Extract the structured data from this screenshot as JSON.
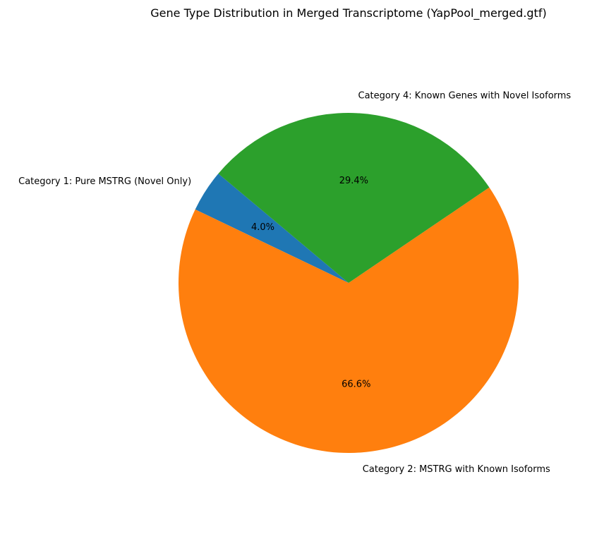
{
  "chart_data": {
    "type": "pie",
    "title": "Gene Type Distribution in Merged Transcriptome (YapPool_merged.gtf)",
    "start_angle_deg": 140,
    "direction": "counterclockwise",
    "slices": [
      {
        "label": "Category 1: Pure MSTRG (Novel Only)",
        "value": 4.0,
        "pct_label": "4.0%",
        "color": "#1f77b4"
      },
      {
        "label": "Category 2: MSTRG with Known Isoforms",
        "value": 66.6,
        "pct_label": "66.6%",
        "color": "#ff7f0e"
      },
      {
        "label": "Category 4: Known Genes with Novel Isoforms",
        "value": 29.4,
        "pct_label": "29.4%",
        "color": "#2ca02c"
      }
    ]
  }
}
